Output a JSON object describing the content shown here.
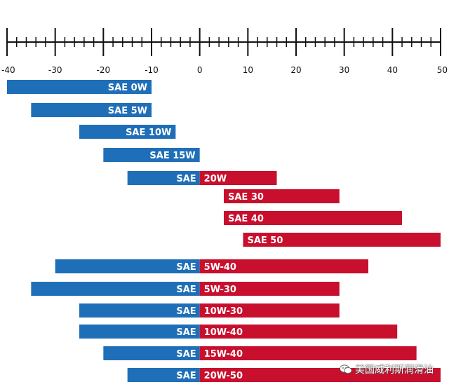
{
  "chart_data": {
    "type": "bar",
    "orientation": "horizontal-range",
    "axis": {
      "min": -40,
      "max": 50,
      "major_ticks": [
        -40,
        -30,
        -20,
        -10,
        0,
        10,
        20,
        30,
        40,
        50
      ],
      "minor_step": 2,
      "position": "top"
    },
    "colors": {
      "cold": "#1f6fb8",
      "hot": "#c8102e",
      "axis": "#111111"
    },
    "bars": [
      {
        "label": "SAE 0W",
        "cold_from": -40,
        "cold_to": -10
      },
      {
        "label": "SAE 5W",
        "cold_from": -35,
        "cold_to": -10
      },
      {
        "label": "SAE 10W",
        "cold_from": -25,
        "cold_to": -5
      },
      {
        "label": "SAE 15W",
        "cold_from": -20,
        "cold_to": 0
      },
      {
        "prefix": "SAE",
        "suffix": "20W",
        "cold_from": -15,
        "cold_to": 0,
        "hot_from": 0,
        "hot_to": 16
      },
      {
        "label": "SAE 30",
        "hot_from": 5,
        "hot_to": 29
      },
      {
        "label": "SAE 40",
        "hot_from": 5,
        "hot_to": 42
      },
      {
        "label": "SAE 50",
        "hot_from": 9,
        "hot_to": 50
      },
      {
        "prefix": "SAE",
        "suffix": "5W-40",
        "cold_from": -30,
        "cold_to": 0,
        "hot_from": 0,
        "hot_to": 35
      },
      {
        "prefix": "SAE",
        "suffix": "5W-30",
        "cold_from": -35,
        "cold_to": 0,
        "hot_from": 0,
        "hot_to": 29
      },
      {
        "prefix": "SAE",
        "suffix": "10W-30",
        "cold_from": -25,
        "cold_to": 0,
        "hot_from": 0,
        "hot_to": 29
      },
      {
        "prefix": "SAE",
        "suffix": "10W-40",
        "cold_from": -25,
        "cold_to": 0,
        "hot_from": 0,
        "hot_to": 41
      },
      {
        "prefix": "SAE",
        "suffix": "15W-40",
        "cold_from": -20,
        "cold_to": 0,
        "hot_from": 0,
        "hot_to": 45
      },
      {
        "prefix": "SAE",
        "suffix": "20W-50",
        "cold_from": -15,
        "cold_to": 0,
        "hot_from": 0,
        "hot_to": 50
      }
    ]
  },
  "watermark": {
    "text": "美国威利斯润滑油",
    "icon": "wechat-icon"
  }
}
